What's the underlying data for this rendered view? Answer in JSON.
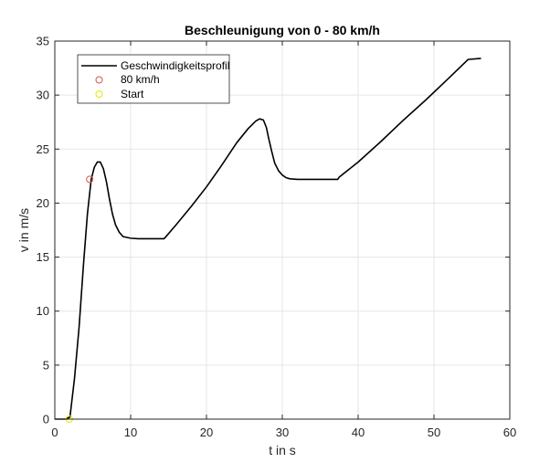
{
  "chart_data": {
    "type": "line",
    "title": "Beschleunigung von 0 - 80 km/h",
    "xlabel": "t in s",
    "ylabel": "v in m/s",
    "xlim": [
      0,
      60
    ],
    "ylim": [
      0,
      35
    ],
    "xticks": [
      "0",
      "10",
      "20",
      "30",
      "40",
      "50",
      "60"
    ],
    "yticks": [
      "0",
      "5",
      "10",
      "15",
      "20",
      "25",
      "30",
      "35"
    ],
    "grid": true,
    "legend_position": "top-left",
    "legend": [
      "Geschwindigkeitsprofil",
      "80 km/h",
      "Start"
    ],
    "colors": {
      "line": "#000000",
      "marker_80": "#d9534f",
      "marker_start": "#e6e600",
      "grid": "#e5e5e5",
      "axis": "#262626"
    },
    "series": [
      {
        "name": "Geschwindigkeitsprofil",
        "kind": "line",
        "x": [
          0,
          1.5,
          2.0,
          2.6,
          3.2,
          3.8,
          4.3,
          4.8,
          5.2,
          5.6,
          6.0,
          6.4,
          6.8,
          7.2,
          7.6,
          8.0,
          8.5,
          9.0,
          10.0,
          11.0,
          12.0,
          13.0,
          14.0,
          14.4,
          14.6,
          16.0,
          18.0,
          20.0,
          22.0,
          24.0,
          25.5,
          26.5,
          27.0,
          27.5,
          27.9,
          28.2,
          28.6,
          29.0,
          29.5,
          30.0,
          30.5,
          31.0,
          32.0,
          33.0,
          35.0,
          37.3,
          37.5,
          40.0,
          43.0,
          46.0,
          49.0,
          52.0,
          54.5,
          56.2
        ],
        "y": [
          0,
          0,
          0.2,
          3.8,
          8.5,
          14.5,
          19.0,
          22.2,
          23.3,
          23.8,
          23.8,
          23.2,
          22.0,
          20.4,
          19.0,
          18.0,
          17.3,
          16.9,
          16.75,
          16.7,
          16.7,
          16.7,
          16.7,
          16.7,
          16.85,
          18.0,
          19.7,
          21.5,
          23.5,
          25.6,
          26.9,
          27.6,
          27.8,
          27.7,
          27.0,
          26.0,
          24.8,
          23.7,
          23.0,
          22.6,
          22.35,
          22.25,
          22.2,
          22.2,
          22.2,
          22.2,
          22.4,
          23.8,
          25.7,
          27.7,
          29.6,
          31.6,
          33.3,
          33.4
        ]
      },
      {
        "name": "80 km/h",
        "kind": "marker",
        "x": [
          4.6
        ],
        "y": [
          22.2
        ]
      },
      {
        "name": "Start",
        "kind": "marker",
        "x": [
          1.9
        ],
        "y": [
          0
        ]
      }
    ]
  }
}
